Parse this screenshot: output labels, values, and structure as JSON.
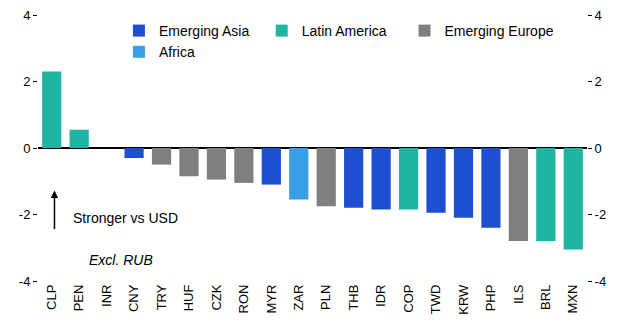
{
  "chart_data": {
    "type": "bar",
    "categories": [
      "CLP",
      "PEN",
      "INR",
      "CNY",
      "TRY",
      "HUF",
      "CZK",
      "RON",
      "MYR",
      "ZAR",
      "PLN",
      "THB",
      "IDR",
      "COP",
      "TWD",
      "KRW",
      "PHP",
      "ILS",
      "BRL",
      "MXN"
    ],
    "series": [
      {
        "name": "Emerging Asia",
        "color": "#1f4fd1",
        "values": [
          null,
          null,
          0,
          -0.3,
          null,
          null,
          null,
          null,
          -1.1,
          null,
          null,
          -1.8,
          -1.85,
          null,
          -1.95,
          -2.1,
          -2.4,
          null,
          null,
          null
        ]
      },
      {
        "name": "Latin America",
        "color": "#1fb5a2",
        "values": [
          2.3,
          0.55,
          null,
          null,
          null,
          null,
          null,
          null,
          null,
          null,
          null,
          null,
          null,
          -1.85,
          null,
          null,
          null,
          null,
          -2.8,
          -3.05
        ]
      },
      {
        "name": "Emerging Europe",
        "color": "#7f7f7f",
        "values": [
          null,
          null,
          null,
          null,
          -0.5,
          -0.85,
          -0.95,
          -1.05,
          null,
          null,
          -1.75,
          null,
          null,
          null,
          null,
          null,
          null,
          -2.8,
          null,
          null
        ]
      },
      {
        "name": "Africa",
        "color": "#3a9fe6",
        "values": [
          null,
          null,
          null,
          null,
          null,
          null,
          null,
          null,
          null,
          -1.55,
          null,
          null,
          null,
          null,
          null,
          null,
          null,
          null,
          null,
          null
        ]
      }
    ],
    "ylim": [
      -4,
      4
    ],
    "yticks": [
      -4,
      -2,
      0,
      2,
      4
    ],
    "y2lim": [
      -4,
      4
    ],
    "y2ticks": [
      -4,
      -2,
      0,
      2,
      4
    ],
    "grid": false,
    "legend": "top",
    "annotations": [
      "Stronger vs USD",
      "Excl. RUB"
    ]
  }
}
